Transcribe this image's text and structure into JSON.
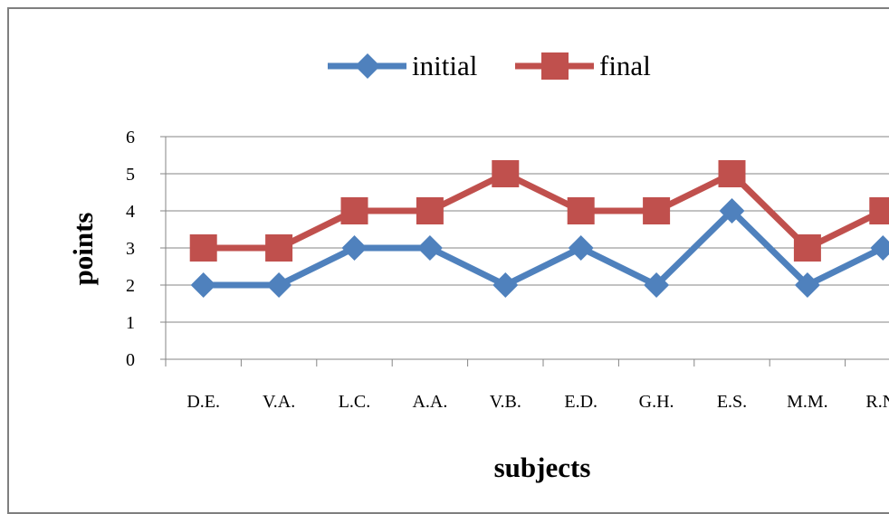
{
  "chart_data": {
    "type": "line",
    "categories": [
      "D.E.",
      "V.A.",
      "L.C.",
      "A.A.",
      "V.B.",
      "E.D.",
      "G.H.",
      "E.S.",
      "M.M.",
      "R.N."
    ],
    "series": [
      {
        "name": "initial",
        "values": [
          2,
          2,
          3,
          3,
          2,
          3,
          2,
          4,
          2,
          3
        ],
        "color": "#4f81bd",
        "marker": "diamond"
      },
      {
        "name": "final",
        "values": [
          3,
          3,
          4,
          4,
          5,
          4,
          4,
          5,
          3,
          4
        ],
        "color": "#c0504d",
        "marker": "square"
      }
    ],
    "xlabel": "subjects",
    "ylabel": "points",
    "ylim": [
      0,
      6
    ],
    "yticks": [
      0,
      1,
      2,
      3,
      4,
      5,
      6
    ],
    "grid": true,
    "legend": "top"
  }
}
